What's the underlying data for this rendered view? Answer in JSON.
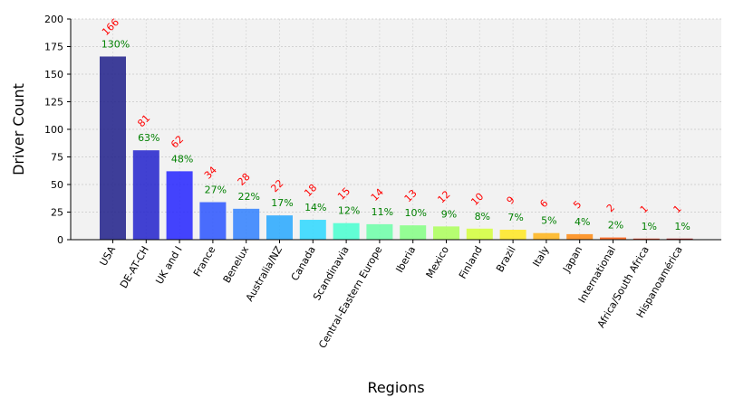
{
  "chart_data": {
    "type": "bar",
    "title": "",
    "xlabel": "Regions",
    "ylabel": "Driver Count",
    "ylim": [
      0,
      200
    ],
    "yticks": [
      0,
      25,
      50,
      75,
      100,
      125,
      150,
      175,
      200
    ],
    "grid": true,
    "categories": [
      "USA",
      "DE-AT-CH",
      "UK and I",
      "France",
      "Benelux",
      "Australia/NZ",
      "Canada",
      "Scandinavia",
      "Central-Eastern Europe",
      "Iberia",
      "Mexico",
      "Finland",
      "Brazil",
      "Italy",
      "Japan",
      "International",
      "Africa/South Africa",
      "Hispanoamérica"
    ],
    "values": [
      166,
      81,
      62,
      34,
      28,
      22,
      18,
      15,
      14,
      13,
      12,
      10,
      9,
      6,
      5,
      2,
      1,
      1
    ],
    "count_labels": [
      "166",
      "81",
      "62",
      "34",
      "28",
      "22",
      "18",
      "15",
      "14",
      "13",
      "12",
      "10",
      "9",
      "6",
      "5",
      "2",
      "1",
      "1"
    ],
    "percent_labels": [
      "130%",
      "63%",
      "48%",
      "27%",
      "22%",
      "17%",
      "14%",
      "12%",
      "11%",
      "10%",
      "9%",
      "8%",
      "7%",
      "5%",
      "4%",
      "2%",
      "1%",
      "1%"
    ],
    "colors": [
      "#1f1f8a",
      "#2222cc",
      "#2525ff",
      "#2c55ff",
      "#3080ff",
      "#27a8ff",
      "#2dd8ff",
      "#48ffd0",
      "#6cffa8",
      "#84ff84",
      "#acff5a",
      "#d4ff3a",
      "#ffe820",
      "#ffb418",
      "#ff8a10",
      "#ff5c0e",
      "#e02a08",
      "#a80404"
    ],
    "count_label_color": "#ff0000",
    "percent_label_color": "#008000",
    "plot_background": "#f2f2f2"
  }
}
